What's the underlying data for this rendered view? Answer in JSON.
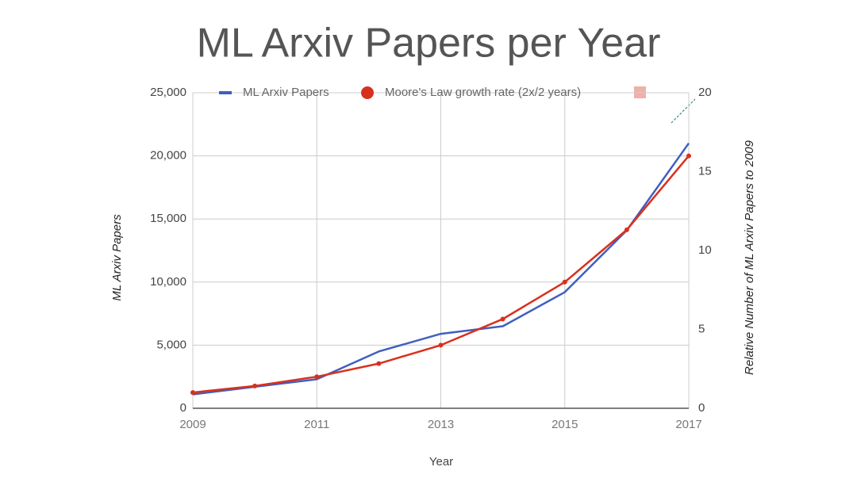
{
  "chart_data": {
    "type": "line",
    "title": "ML Arxiv Papers per Year",
    "x_label": "Year",
    "y_label": "ML Arxiv Papers",
    "y2_label": "Relative Number of ML Arxiv Papers  to 2009",
    "x": [
      2009,
      2010,
      2011,
      2012,
      2013,
      2014,
      2015,
      2016,
      2017
    ],
    "xlim": [
      2009,
      2017
    ],
    "xticks": [
      2009,
      2011,
      2013,
      2015,
      2017
    ],
    "ylim": [
      0,
      25000
    ],
    "yticks": [
      0,
      {
        "value": 5000,
        "label": "5,000"
      },
      {
        "value": 10000,
        "label": "10,000"
      },
      {
        "value": 15000,
        "label": "15,000"
      },
      {
        "value": 20000,
        "label": "20,000"
      },
      {
        "value": 25000,
        "label": "25,000"
      }
    ],
    "y2lim": [
      0,
      20
    ],
    "y2ticks": [
      0,
      5,
      10,
      15,
      20
    ],
    "grid": true,
    "legend": "top",
    "series": [
      {
        "name": "ML Arxiv Papers",
        "color": "#3f5fbf",
        "values": [
          1100,
          1700,
          2300,
          4500,
          5900,
          6500,
          9200,
          14100,
          21000
        ]
      },
      {
        "name": "Moore's Law growth rate (2x/2 years)",
        "color": "#d9301e",
        "values": [
          1250,
          1770,
          2500,
          3540,
          5000,
          7070,
          10000,
          14140,
          20000
        ]
      }
    ]
  }
}
